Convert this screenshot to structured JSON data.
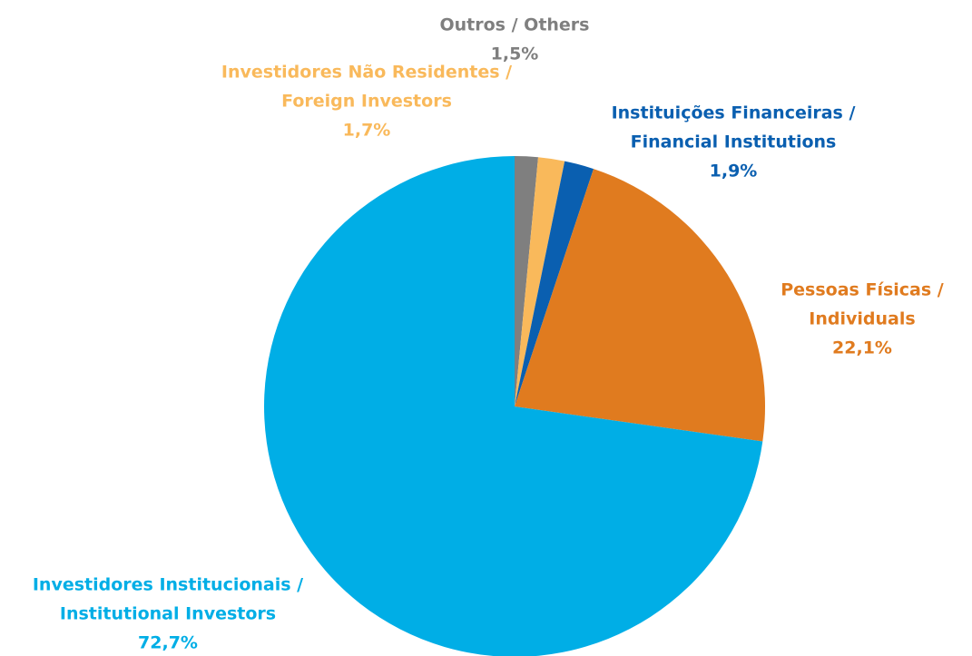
{
  "chart_data": {
    "type": "pie",
    "labels": [
      [
        "Outros / Others"
      ],
      [
        "Investidores Não Residentes /",
        "Foreign Investors"
      ],
      [
        "Instituições Financeiras /",
        "Financial Institutions"
      ],
      [
        "Pessoas Físicas /",
        "Individuals"
      ],
      [
        "Investidores Institucionais /",
        "Institutional Investors"
      ]
    ],
    "values": [
      1.5,
      1.7,
      1.9,
      22.1,
      72.7
    ],
    "value_labels": [
      "1,5%",
      "1,7%",
      "1,9%",
      "22,1%",
      "72,7%"
    ],
    "colors": [
      "#7f7f7f",
      "#f9b95b",
      "#0a5fb0",
      "#e07b1f",
      "#00aee6"
    ]
  }
}
